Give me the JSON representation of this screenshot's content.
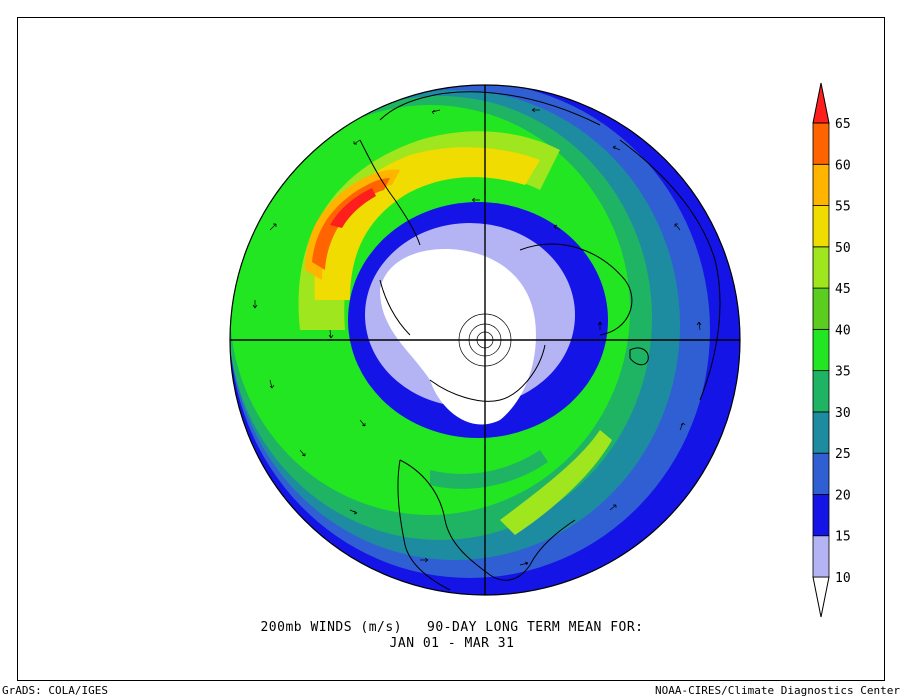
{
  "caption": {
    "line1": "200mb WINDS (m/s)   90-DAY LONG TERM MEAN FOR:",
    "line2": "JAN 01 - MAR 31"
  },
  "footer": {
    "left": "GrADS: COLA/IGES",
    "right": "NOAA-CIRES/Climate Diagnostics Center"
  },
  "legend": {
    "levels": [
      "10",
      "15",
      "20",
      "25",
      "30",
      "35",
      "40",
      "45",
      "50",
      "55",
      "60",
      "65"
    ],
    "colors": [
      "#ffffff",
      "#b4b4f5",
      "#1414e6",
      "#2f5fd2",
      "#1e8ca0",
      "#1eb464",
      "#23e623",
      "#5acd1e",
      "#a0e61e",
      "#f0dc00",
      "#ffb400",
      "#ff6400",
      "#ff1e1e"
    ]
  },
  "map": {
    "projection": "north-polar-stereographic",
    "variable": "200mb wind speed (m/s) with wind vectors",
    "features": [
      "coastlines",
      "country-borders",
      "us-state-borders",
      "meridian-crosshair"
    ],
    "jet_maxima": [
      "east-asia-japan",
      "eastern-north-america-atlantic"
    ]
  }
}
